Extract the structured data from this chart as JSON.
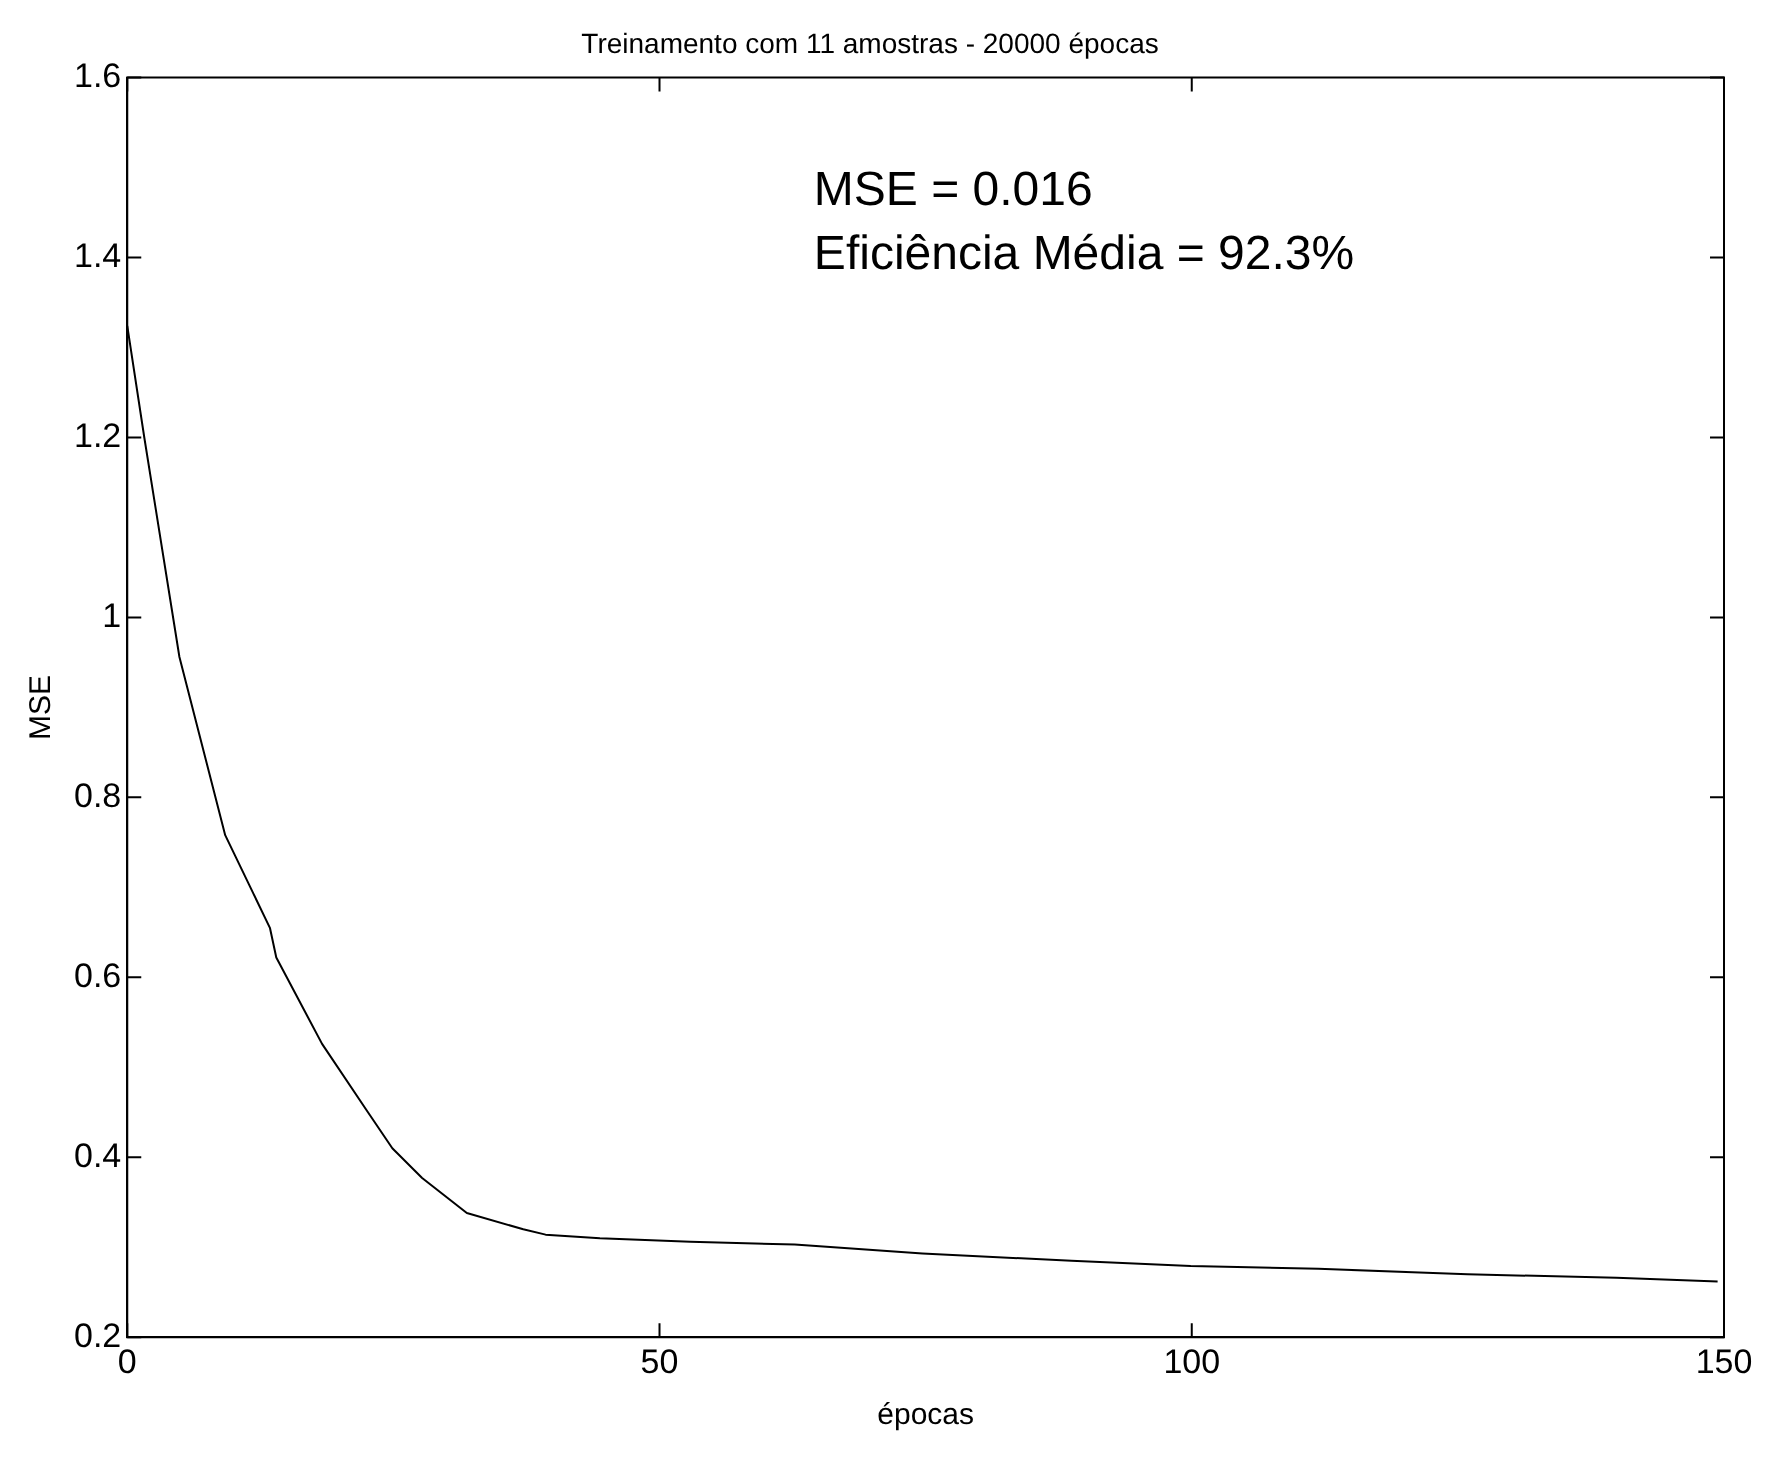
{
  "chart_data": {
    "type": "line",
    "title": "Treinamento com 11 amostras - 20000 épocas",
    "xlabel": "épocas",
    "ylabel": "MSE",
    "annotations": [
      "MSE = 0.016",
      "Eficiência Média = 92.3%"
    ],
    "xlim": [
      0,
      150
    ],
    "xticks": [
      0,
      50,
      100,
      150
    ],
    "ylim": [
      0.2,
      1.6
    ],
    "yticks": [
      0.2,
      0.4,
      0.6,
      0.8,
      1,
      1.2,
      1.4,
      1.6
    ],
    "grid": false,
    "legend": false,
    "marker": "none",
    "line_style": "solid",
    "series": [
      {
        "color": "#000000",
        "x": [
          0,
          1.6,
          4.9,
          9.2,
          13.4,
          14,
          18.3,
          22.5,
          24.9,
          27.7,
          31.9,
          37.2,
          39.3,
          44.4,
          52.9,
          62.7,
          74.7,
          88.7,
          99.9,
          111.9,
          125.9,
          139.9,
          149.4
        ],
        "values": [
          1.324,
          1.2,
          0.956,
          0.758,
          0.655,
          0.622,
          0.526,
          0.452,
          0.41,
          0.377,
          0.338,
          0.32,
          0.314,
          0.31,
          0.306,
          0.303,
          0.293,
          0.285,
          0.279,
          0.276,
          0.27,
          0.266,
          0.262
        ]
      }
    ]
  }
}
